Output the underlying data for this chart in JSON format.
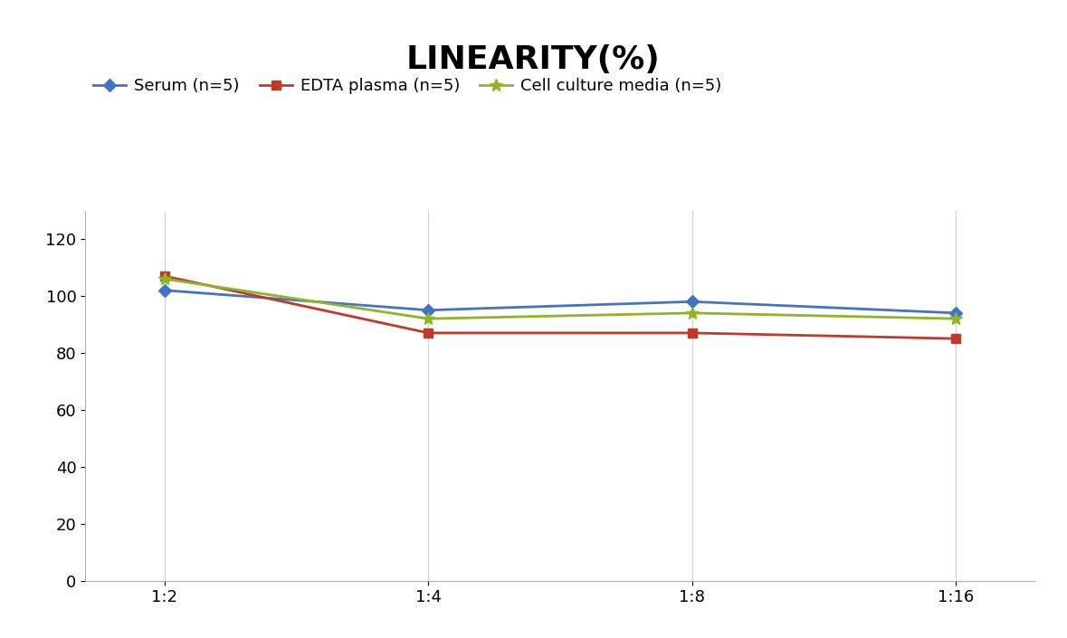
{
  "title": "LINEARITY(%)",
  "title_fontsize": 26,
  "title_fontweight": "bold",
  "x_labels": [
    "1:2",
    "1:4",
    "1:8",
    "1:16"
  ],
  "x_positions": [
    0,
    1,
    2,
    3
  ],
  "series": [
    {
      "label": "Serum (n=5)",
      "values": [
        102,
        95,
        98,
        94
      ],
      "color": "#4472C4",
      "marker": "D",
      "markersize": 7,
      "linewidth": 2
    },
    {
      "label": "EDTA plasma (n=5)",
      "values": [
        107,
        87,
        87,
        85
      ],
      "color": "#C0392B",
      "marker": "s",
      "markersize": 7,
      "linewidth": 2
    },
    {
      "label": "Cell culture media (n=5)",
      "values": [
        106,
        92,
        94,
        92
      ],
      "color": "#8DB526",
      "marker": "*",
      "markersize": 10,
      "linewidth": 2
    }
  ],
  "ylim": [
    0,
    130
  ],
  "yticks": [
    0,
    20,
    40,
    60,
    80,
    100,
    120
  ],
  "background_color": "#ffffff",
  "grid_color": "#d0d0d0",
  "legend_fontsize": 13,
  "tick_fontsize": 13
}
